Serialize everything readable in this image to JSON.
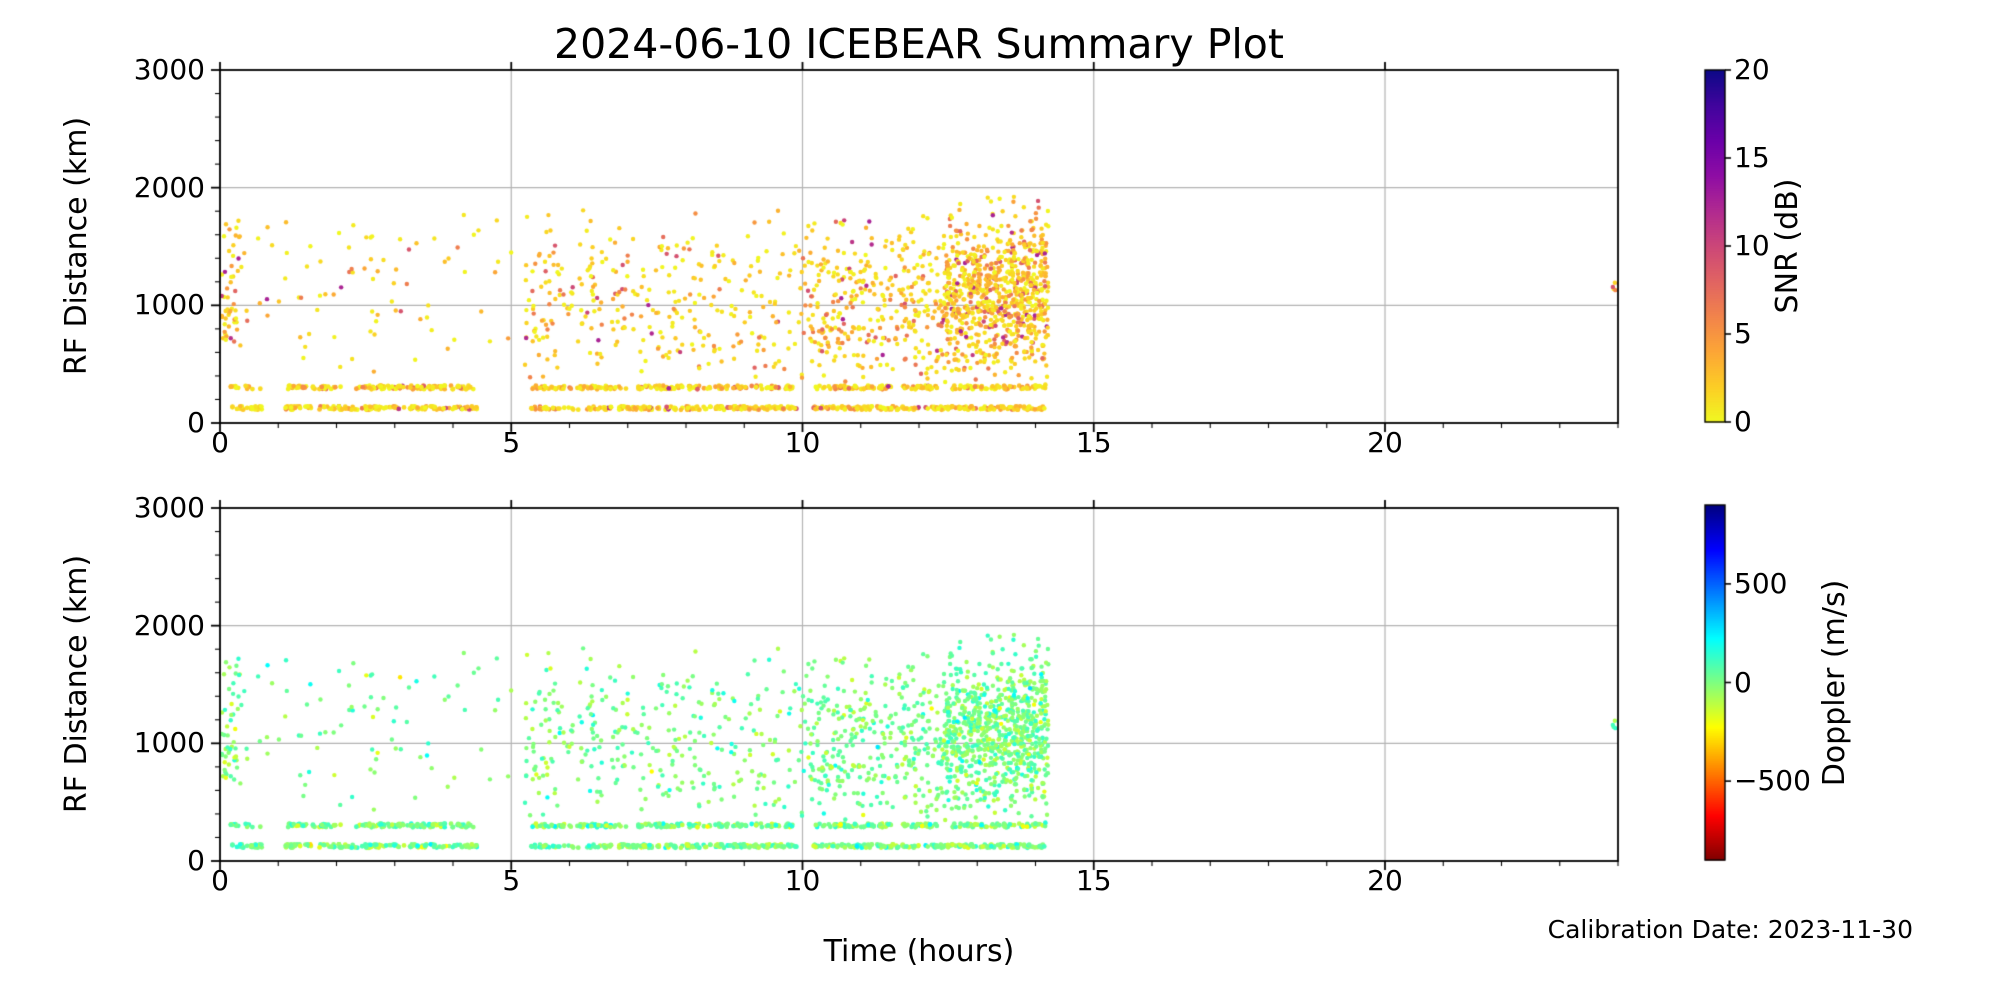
{
  "figure": {
    "title": "2024-06-10 ICEBEAR Summary Plot",
    "calibration_note": "Calibration Date: 2023-11-30",
    "background_color": "#ffffff",
    "spine_color": "#000000",
    "grid_color": "#b2b2b2"
  },
  "chart_data": [
    {
      "type": "scatter",
      "panel": "snr",
      "title": "2024-06-10 ICEBEAR Summary Plot",
      "xlabel": "",
      "ylabel": "RF Distance (km)",
      "xlim": [
        0,
        24
      ],
      "ylim": [
        0,
        3000
      ],
      "xticks": [
        0,
        5,
        10,
        15,
        20
      ],
      "xtick_labels": [
        "0",
        "5",
        "10",
        "15",
        "20"
      ],
      "yticks": [
        0,
        1000,
        2000,
        3000
      ],
      "ytick_labels": [
        "0",
        "1000",
        "2000",
        "3000"
      ],
      "x_minor_step": 1,
      "y_minor_step": 200,
      "grid": true,
      "colorbar": {
        "label": "SNR (dB)",
        "range": [
          0,
          20
        ],
        "ticks": [
          0,
          5,
          10,
          15,
          20
        ],
        "tick_labels": [
          "0",
          "5",
          "10",
          "15",
          "20"
        ],
        "colormap": "plasma_r",
        "stops": [
          [
            0.0,
            "#0d0887"
          ],
          [
            0.1,
            "#41049d"
          ],
          [
            0.2,
            "#6a00a8"
          ],
          [
            0.3,
            "#8f0da4"
          ],
          [
            0.4,
            "#b12a90"
          ],
          [
            0.5,
            "#cc4778"
          ],
          [
            0.6,
            "#e16462"
          ],
          [
            0.7,
            "#f2844b"
          ],
          [
            0.8,
            "#fca636"
          ],
          [
            0.9,
            "#fcce25"
          ],
          [
            1.0,
            "#f0f921"
          ]
        ]
      }
    },
    {
      "type": "scatter",
      "panel": "doppler",
      "title": "2024-06-10 ICEBEAR Summary Plot",
      "xlabel": "Time (hours)",
      "ylabel": "RF Distance (km)",
      "xlim": [
        0,
        24
      ],
      "ylim": [
        0,
        3000
      ],
      "xticks": [
        0,
        5,
        10,
        15,
        20
      ],
      "xtick_labels": [
        "0",
        "5",
        "10",
        "15",
        "20"
      ],
      "yticks": [
        0,
        1000,
        2000,
        3000
      ],
      "ytick_labels": [
        "0",
        "1000",
        "2000",
        "3000"
      ],
      "x_minor_step": 1,
      "y_minor_step": 200,
      "grid": true,
      "colorbar": {
        "label": "Doppler (m/s)",
        "range": [
          -900,
          900
        ],
        "ticks": [
          -500,
          0,
          500
        ],
        "tick_labels": [
          "−500",
          "0",
          "500"
        ],
        "colormap": "jet_r",
        "stops": [
          [
            0.0,
            "#000080"
          ],
          [
            0.125,
            "#0000ff"
          ],
          [
            0.375,
            "#00ffff"
          ],
          [
            0.625,
            "#ffff00"
          ],
          [
            0.875,
            "#ff0000"
          ],
          [
            1.0,
            "#800000"
          ]
        ]
      }
    }
  ],
  "points_spec": {
    "seed": 42,
    "marker_radius_px": 2.2,
    "t_coverage_hours": [
      0,
      14.25
    ],
    "snr_model": {
      "distribution": "exponential",
      "max_db": 12.5
    },
    "doppler_model": {
      "mean_ms": 12,
      "sigma_ms": 85,
      "clip_ms": [
        -280,
        300
      ]
    },
    "components": [
      {
        "name": "low-band",
        "n": 540,
        "t_range": [
          0.12,
          14.2
        ],
        "t_gaps": [
          [
            0.72,
            1.12
          ],
          [
            4.42,
            5.32
          ],
          [
            9.9,
            10.18
          ]
        ],
        "km_range": [
          112,
          142
        ],
        "marker_r": 2.4,
        "snr_mean": 2.2
      },
      {
        "name": "high-band",
        "n": 450,
        "t_range": [
          0.12,
          14.2
        ],
        "t_gaps": [
          [
            0.7,
            1.15
          ],
          [
            2.08,
            2.3
          ],
          [
            4.38,
            5.35
          ],
          [
            6.98,
            7.18
          ],
          [
            9.85,
            10.22
          ],
          [
            11.52,
            11.72
          ],
          [
            12.38,
            12.58
          ]
        ],
        "km_range": [
          286,
          318
        ],
        "marker_r": 2.4,
        "snr_mean": 2.2
      },
      {
        "name": "start-strip",
        "n": 30,
        "t_range": [
          0.03,
          0.42
        ],
        "km_range": [
          520,
          1780
        ],
        "snr_mean": 2.8
      },
      {
        "name": "start-blob",
        "n": 22,
        "t_range": [
          0.02,
          0.28
        ],
        "km_range": [
          680,
          1260
        ],
        "km_center": 950,
        "km_sigma": 160,
        "snr_mean": 3.0
      },
      {
        "name": "sparse-morning",
        "n": 80,
        "t_range": [
          0.42,
          5.2
        ],
        "km_range": [
          430,
          1780
        ],
        "km_center": 1080,
        "km_sigma": 430,
        "snr_mean": 2.6
      },
      {
        "name": "midday",
        "n": 310,
        "t_range": [
          5.2,
          10.0
        ],
        "km_range": [
          360,
          1810
        ],
        "km_center": 1030,
        "km_sigma": 390,
        "snr_mean": 2.6
      },
      {
        "name": "pre-dense",
        "n": 330,
        "t_range": [
          10.0,
          12.42
        ],
        "km_range": [
          340,
          1780
        ],
        "km_center": 1000,
        "km_sigma": 380,
        "snr_mean": 2.7
      },
      {
        "name": "dense-cluster",
        "n": 820,
        "t_range": [
          12.42,
          14.22
        ],
        "km_range": [
          250,
          1930
        ],
        "km_center": 1090,
        "km_sigma": 310,
        "snr_mean": 3.1
      },
      {
        "name": "late-burst",
        "n": 7,
        "t_range": [
          23.9,
          24.08
        ],
        "km_range": [
          1090,
          1215
        ],
        "snr_mean": 2.6
      }
    ]
  }
}
